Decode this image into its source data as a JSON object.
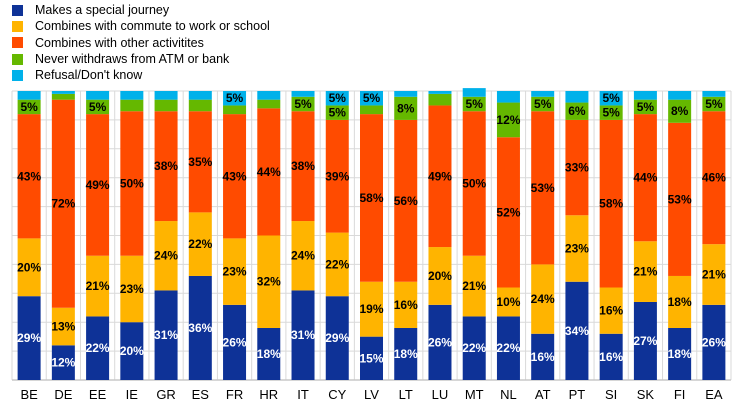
{
  "chart_data": {
    "type": "bar",
    "stacked": true,
    "title": "",
    "xlabel": "",
    "ylabel": "",
    "ylim": [
      0,
      100
    ],
    "grid": true,
    "legend_position": "top-left",
    "categories": [
      "BE",
      "DE",
      "EE",
      "IE",
      "GR",
      "ES",
      "FR",
      "HR",
      "IT",
      "CY",
      "LV",
      "LT",
      "LU",
      "MT",
      "NL",
      "AT",
      "PT",
      "SI",
      "SK",
      "FI",
      "EA"
    ],
    "series": [
      {
        "name": "Makes a special journey",
        "color": "#0E3297",
        "values": [
          29,
          12,
          22,
          20,
          31,
          36,
          26,
          18,
          31,
          29,
          15,
          18,
          26,
          22,
          22,
          16,
          34,
          16,
          27,
          18,
          26
        ]
      },
      {
        "name": "Combines with commute to work or school",
        "color": "#FFB400",
        "values": [
          20,
          13,
          21,
          23,
          24,
          22,
          23,
          32,
          24,
          22,
          19,
          16,
          20,
          21,
          10,
          24,
          23,
          16,
          21,
          18,
          21
        ]
      },
      {
        "name": "Combines with other activitites",
        "color": "#FF4B00",
        "values": [
          43,
          72,
          49,
          50,
          38,
          35,
          43,
          44,
          38,
          39,
          58,
          56,
          49,
          50,
          52,
          53,
          33,
          58,
          44,
          53,
          46
        ]
      },
      {
        "name": "Never withdraws from ATM or bank",
        "color": "#65B800",
        "values": [
          5,
          2,
          5,
          4,
          4,
          4,
          3,
          3,
          5,
          5,
          3,
          8,
          4,
          5,
          12,
          5,
          6,
          5,
          5,
          8,
          5
        ]
      },
      {
        "name": "Refusal/Don't know",
        "color": "#00B1EA",
        "values": [
          3,
          1,
          3,
          3,
          3,
          3,
          5,
          3,
          2,
          5,
          5,
          2,
          1,
          3,
          4,
          2,
          4,
          5,
          3,
          3,
          2
        ]
      }
    ]
  }
}
